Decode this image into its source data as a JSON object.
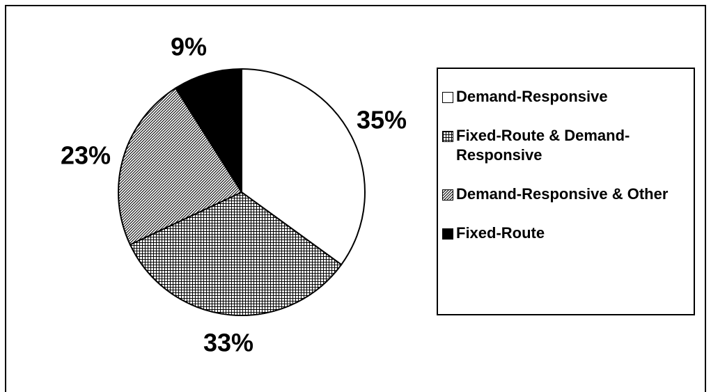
{
  "chart_data": {
    "type": "pie",
    "categories": [
      "Demand-Responsive",
      "Fixed-Route & Demand-Responsive",
      "Demand-Responsive & Other",
      "Fixed-Route"
    ],
    "values": [
      35,
      33,
      23,
      9
    ],
    "value_labels": [
      "35%",
      "33%",
      "23%",
      "9%"
    ]
  }
}
